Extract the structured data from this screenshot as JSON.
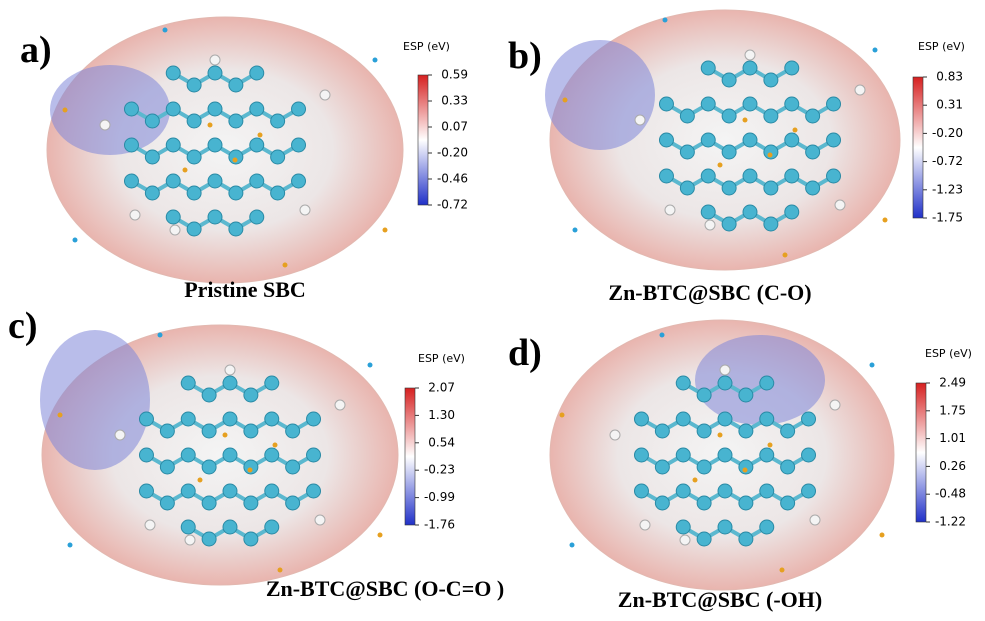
{
  "panels": [
    {
      "label": "a)",
      "caption": "Pristine SBC",
      "colorbar": {
        "title": "ESP (eV)",
        "ticks": [
          "0.59",
          "0.33",
          "0.07",
          "-0.20",
          "-0.46",
          "-0.72"
        ]
      }
    },
    {
      "label": "b)",
      "caption": "Zn-BTC@SBC (C-O)",
      "colorbar": {
        "title": "ESP (eV)",
        "ticks": [
          "0.83",
          "0.31",
          "-0.20",
          "-0.72",
          "-1.23",
          "-1.75"
        ]
      }
    },
    {
      "label": "c)",
      "caption": "Zn-BTC@SBC (O-C=O )",
      "colorbar": {
        "title": "ESP (eV)",
        "ticks": [
          "2.07",
          "1.30",
          "0.54",
          "-0.23",
          "-0.99",
          "-1.76"
        ]
      }
    },
    {
      "label": "d)",
      "caption": "Zn-BTC@SBC (-OH)",
      "colorbar": {
        "title": "ESP (eV)",
        "ticks": [
          "2.49",
          "1.75",
          "1.01",
          "0.26",
          "-0.48",
          "-1.22"
        ]
      }
    }
  ]
}
